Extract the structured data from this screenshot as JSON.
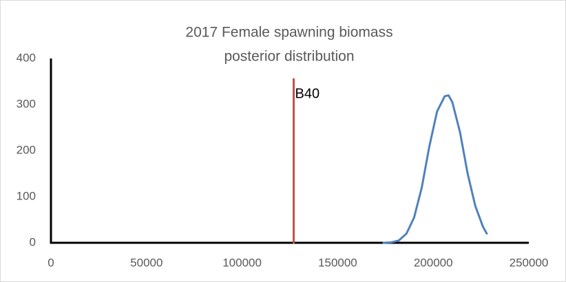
{
  "chart_data": {
    "type": "line",
    "title": [
      "2017 Female spawning biomass",
      "posterior distribution"
    ],
    "x": [
      174000,
      178000,
      182000,
      186000,
      190000,
      194000,
      198000,
      202000,
      206000,
      208000,
      210000,
      214000,
      218000,
      222000,
      226000,
      228000
    ],
    "values": [
      0,
      1,
      5,
      20,
      55,
      120,
      210,
      285,
      318,
      320,
      305,
      240,
      150,
      80,
      35,
      20
    ],
    "color": "#4f81bd",
    "reference_line": {
      "label": "B40",
      "x": [
        127000,
        127000
      ],
      "values": [
        0,
        355
      ],
      "color": "#c0504d"
    },
    "xlim": [
      0,
      250000
    ],
    "xticks": [
      0,
      50000,
      100000,
      150000,
      200000,
      250000
    ],
    "ylim": [
      0,
      400
    ],
    "yticks": [
      0,
      100,
      200,
      300,
      400
    ],
    "grid": false
  }
}
